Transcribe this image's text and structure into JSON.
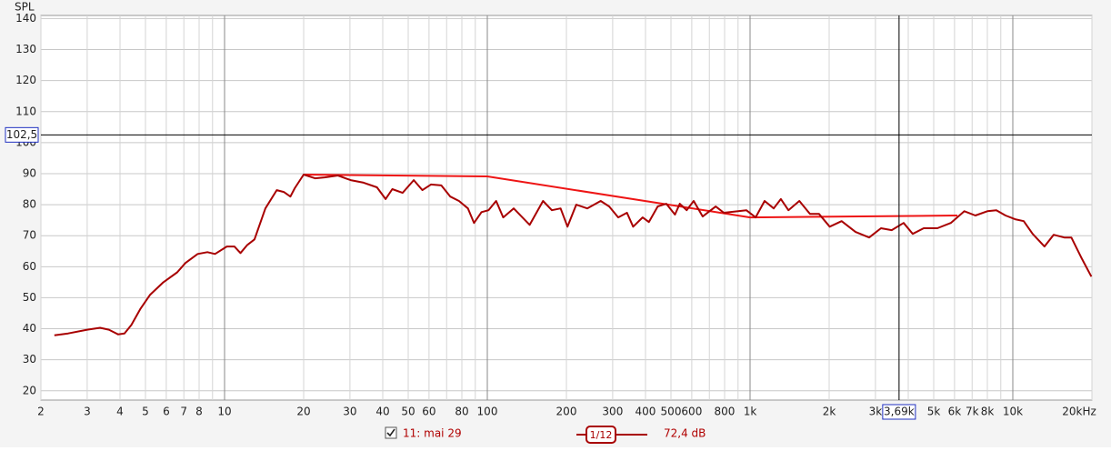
{
  "chart_data": {
    "type": "line",
    "y_axis_label": "SPL",
    "x_scale": "log",
    "grid": true,
    "xlim": [
      2,
      20000
    ],
    "ylim": [
      17,
      141
    ],
    "xticks": [
      2,
      3,
      4,
      5,
      6,
      7,
      8,
      10,
      20,
      30,
      40,
      50,
      60,
      80,
      100,
      200,
      300,
      400,
      500,
      600,
      800,
      {
        "value": 1000,
        "label": "1k"
      },
      {
        "value": 2000,
        "label": "2k"
      },
      {
        "value": 3000,
        "label": "3k"
      },
      {
        "value": 5000,
        "label": "5k"
      },
      {
        "value": 6000,
        "label": "6k"
      },
      {
        "value": 7000,
        "label": "7k"
      },
      {
        "value": 8000,
        "label": "8k"
      },
      {
        "value": 10000,
        "label": "10k"
      },
      {
        "value": 20000,
        "label": "20kHz"
      }
    ],
    "xminor": [
      9,
      70,
      90,
      700,
      900,
      4000,
      9000
    ],
    "yticks": [
      20,
      30,
      40,
      50,
      60,
      70,
      80,
      90,
      100,
      110,
      120,
      130,
      140
    ],
    "cursor_y": {
      "value": 102.5,
      "label": "102,5"
    },
    "cursor_x": {
      "value": 3690,
      "label": "3,69k"
    },
    "smoothing": "1/12",
    "readout": "72,4 dB",
    "series": [
      {
        "name": "11: mai 29",
        "color": "#a80000",
        "x": [
          2.25,
          2.54,
          3.0,
          3.36,
          3.63,
          3.93,
          4.16,
          4.42,
          4.79,
          5.2,
          5.85,
          6.6,
          7.1,
          7.9,
          8.6,
          9.2,
          10.2,
          10.9,
          11.5,
          12.2,
          13,
          14.3,
          15.8,
          16.8,
          17.8,
          18.5,
          20,
          22.1,
          24,
          27,
          30.2,
          33.8,
          38,
          41,
          43.5,
          47.6,
          52.5,
          56.6,
          61,
          66.8,
          72.3,
          78,
          84.4,
          89,
          95,
          101,
          108,
          115,
          126,
          145,
          163,
          176,
          190,
          202,
          218,
          240,
          270,
          291,
          315,
          340,
          359,
          390,
          412,
          445,
          480,
          518,
          540,
          574,
          610,
          660,
          740,
          795,
          968,
          1050,
          1136,
          1230,
          1310,
          1400,
          1540,
          1690,
          1830,
          2010,
          2230,
          2520,
          2840,
          3150,
          3460,
          3840,
          4160,
          4580,
          5160,
          5810,
          6540,
          7200,
          8000,
          8660,
          9380,
          10200,
          11000,
          11900,
          13200,
          14300,
          15700,
          16700,
          18300,
          19900
        ],
        "values": [
          37.9,
          38.5,
          39.7,
          40.3,
          39.7,
          38.2,
          38.5,
          41.2,
          46.5,
          50.9,
          55,
          58.2,
          61.2,
          64.1,
          64.7,
          64.1,
          66.5,
          66.5,
          64.4,
          67,
          68.8,
          78.8,
          84.7,
          84.1,
          82.6,
          85.3,
          89.7,
          88.5,
          88.8,
          89.4,
          87.9,
          87.1,
          85.6,
          81.8,
          85,
          83.8,
          87.9,
          84.7,
          86.5,
          86.2,
          82.6,
          81.2,
          78.8,
          74.1,
          77.6,
          78.2,
          81.2,
          75.9,
          78.8,
          73.5,
          81.2,
          78.2,
          78.8,
          72.9,
          80,
          78.8,
          81.2,
          79.4,
          75.9,
          77.4,
          72.9,
          75.9,
          74.4,
          79.4,
          80.3,
          76.8,
          80.3,
          78.2,
          81.2,
          76.2,
          79.4,
          77.4,
          78.2,
          75.9,
          81.2,
          78.8,
          81.8,
          78.2,
          81.2,
          77,
          77,
          72.9,
          74.7,
          71.2,
          69.4,
          72.4,
          71.8,
          74.1,
          70.6,
          72.4,
          72.4,
          74.1,
          77.9,
          76.5,
          77.9,
          78.2,
          76.5,
          75.3,
          74.7,
          70.6,
          66.5,
          70.3,
          69.4,
          69.4,
          62.6,
          56.8
        ]
      },
      {
        "color": "#ee1515",
        "x": [
          20,
          100,
          1000,
          6150
        ],
        "values": [
          89.7,
          89.1,
          75.9,
          76.5
        ]
      }
    ]
  }
}
